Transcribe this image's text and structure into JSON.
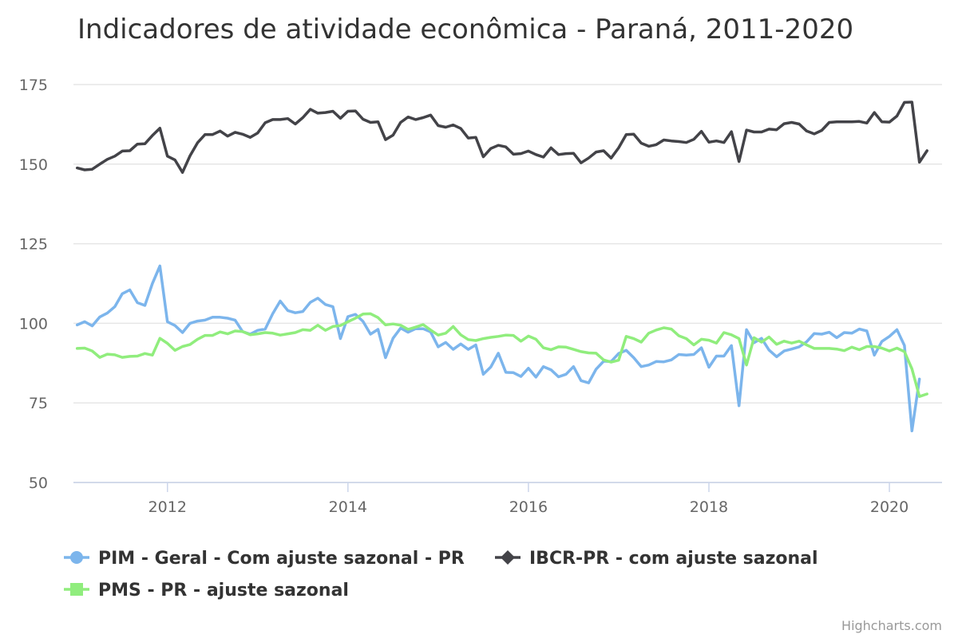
{
  "chart_data": {
    "type": "line",
    "title": "Indicadores de atividade econômica - Paraná, 2011-2020",
    "xlabel": "",
    "ylabel": "",
    "x_start": "2011-01",
    "x_end": "2020-05",
    "ylim": [
      50,
      175
    ],
    "y_ticks": [
      "50",
      "75",
      "100",
      "125",
      "150",
      "175"
    ],
    "x_ticks": [
      "2012",
      "2014",
      "2016",
      "2018",
      "2020"
    ],
    "grid": "horizontal",
    "legend_position": "bottom-left",
    "credits": "Highcharts.com",
    "series": [
      {
        "name": "PIM - Geral - Com ajuste sazonal - PR",
        "color": "#7cb5ec",
        "marker": "circle",
        "values": [
          99.5,
          100.5,
          99.2,
          102,
          103.2,
          105.2,
          109.3,
          110.5,
          106.5,
          105.6,
          112.5,
          118,
          100.5,
          99.3,
          97.1,
          100,
          100.7,
          101,
          101.9,
          101.9,
          101.6,
          101,
          97.4,
          96.6,
          97.8,
          98.2,
          103,
          107,
          104,
          103.3,
          103.7,
          106.6,
          107.9,
          105.9,
          105.2,
          95.2,
          102.1,
          102.8,
          100.6,
          96.6,
          98.1,
          89.2,
          95.3,
          98.5,
          97.2,
          98.3,
          98.3,
          97.3,
          92.6,
          94,
          91.8,
          93.5,
          91.8,
          93.2,
          84,
          86.3,
          90.6,
          84.6,
          84.5,
          83.3,
          85.9,
          83.1,
          86.4,
          85.4,
          83.2,
          84,
          86.4,
          82,
          81.3,
          85.6,
          88.1,
          88,
          90.5,
          91.5,
          89.2,
          86.4,
          86.9,
          88,
          87.9,
          88.5,
          90.2,
          90,
          90.2,
          92.3,
          86.2,
          89.7,
          89.7,
          93,
          74.1,
          98,
          93.9,
          95.3,
          91.6,
          89.5,
          91.3,
          91.9,
          92.6,
          94.2,
          96.8,
          96.6,
          97.2,
          95.5,
          97.1,
          96.9,
          98.2,
          97.6,
          90,
          94.3,
          95.9,
          98,
          93,
          66.2,
          82.5
        ]
      },
      {
        "name": "IBCR-PR - com ajuste sazonal",
        "color": "#434348",
        "marker": "diamond",
        "values": [
          148.8,
          148.2,
          148.4,
          150,
          151.5,
          152.5,
          154.1,
          154.2,
          156.3,
          156.4,
          159,
          161.3,
          152.5,
          151.3,
          147.4,
          152.6,
          156.7,
          159.3,
          159.3,
          160.4,
          158.8,
          160,
          159.4,
          158.4,
          159.8,
          163,
          164,
          164,
          164.3,
          162.6,
          164.6,
          167.2,
          166,
          166.2,
          166.6,
          164.4,
          166.6,
          166.7,
          164.1,
          163.1,
          163.3,
          157.7,
          159.1,
          163.1,
          164.8,
          164,
          164.6,
          165.4,
          162.1,
          161.6,
          162.3,
          161.2,
          158.2,
          158.4,
          152.3,
          154.9,
          155.9,
          155.4,
          153.1,
          153.3,
          154.1,
          153,
          152.2,
          155.1,
          153,
          153.3,
          153.4,
          150.4,
          151.9,
          153.8,
          154.2,
          151.9,
          155.1,
          159.3,
          159.4,
          156.6,
          155.6,
          156.1,
          157.6,
          157.3,
          157.1,
          156.8,
          157.8,
          160.3,
          156.9,
          157.3,
          156.8,
          160.2,
          150.8,
          160.7,
          160.1,
          160.1,
          161,
          160.8,
          162.7,
          163.1,
          162.6,
          160.4,
          159.5,
          160.6,
          163.1,
          163.3,
          163.3,
          163.3,
          163.4,
          162.9,
          166.2,
          163.3,
          163.2,
          165.1,
          169.4,
          169.5,
          150.6,
          154.2
        ]
      },
      {
        "name": "PMS - PR - ajuste sazonal",
        "color": "#90ed7d",
        "marker": "square",
        "values": [
          92.1,
          92.2,
          91.3,
          89.3,
          90.3,
          90.1,
          89.3,
          89.6,
          89.7,
          90.5,
          90,
          95.3,
          93.7,
          91.5,
          92.7,
          93.3,
          95,
          96.2,
          96.2,
          97.3,
          96.7,
          97.6,
          97.4,
          96.4,
          96.7,
          97.1,
          96.9,
          96.3,
          96.7,
          97.1,
          98,
          97.8,
          99.4,
          97.8,
          99,
          99.3,
          100.5,
          101.6,
          102.9,
          103,
          101.8,
          99.5,
          99.8,
          99.4,
          98.1,
          98.8,
          99.6,
          97.9,
          96.3,
          96.9,
          99,
          96.4,
          94.9,
          94.6,
          95.2,
          95.6,
          95.9,
          96.3,
          96.2,
          94.4,
          96,
          95,
          92.3,
          91.7,
          92.6,
          92.5,
          91.8,
          91.1,
          90.7,
          90.6,
          88.5,
          87.8,
          88.4,
          95.9,
          95.2,
          94.1,
          96.9,
          97.9,
          98.6,
          98.2,
          96.1,
          95.2,
          93.2,
          95,
          94.7,
          93.8,
          97.1,
          96.4,
          95.2,
          86.9,
          95.5,
          94.1,
          95.7,
          93.4,
          94.4,
          93.8,
          94.4,
          93.2,
          92.1,
          92.1,
          92.1,
          91.9,
          91.4,
          92.5,
          91.7,
          92.7,
          92.7,
          92.2,
          91.3,
          92.2,
          91.1,
          85.7,
          77,
          77.8
        ]
      }
    ]
  }
}
